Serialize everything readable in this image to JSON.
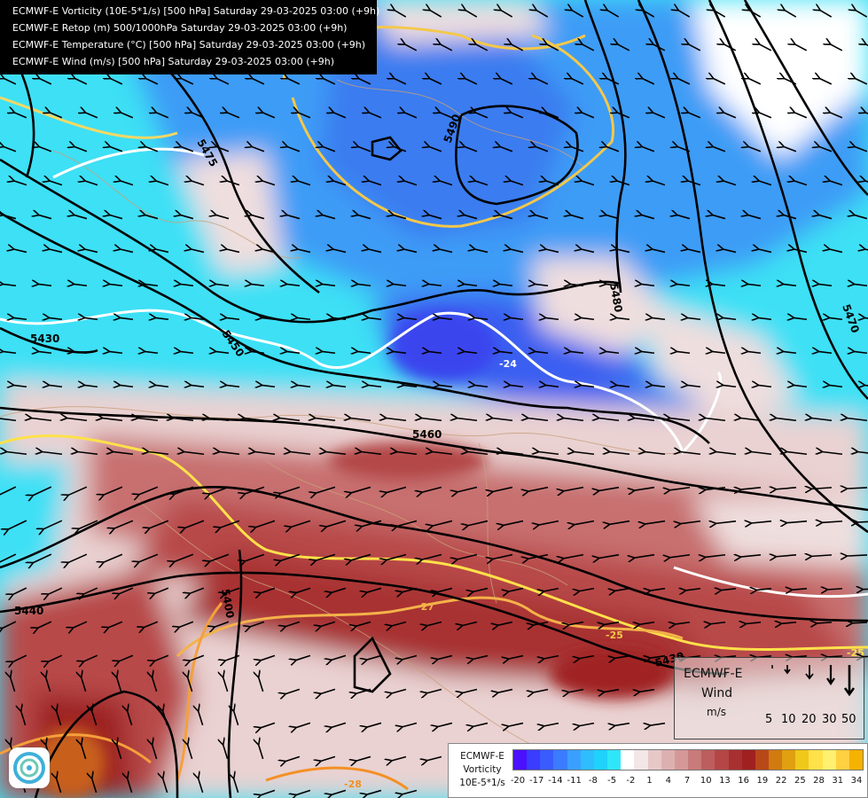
{
  "titles": [
    "ECMWF-E Vorticity (10E-5*1/s) [500 hPa] Saturday 29-03-2025 03:00 (+9h)",
    "ECMWF-E Retop (m) 500/1000hPa Saturday 29-03-2025 03:00 (+9h)",
    "ECMWF-E Temperature (°C) [500 hPa] Saturday 29-03-2025 03:00 (+9h)",
    "ECMWF-E Wind (m/s) [500 hPa] Saturday 29-03-2025 03:00 (+9h)"
  ],
  "contour_labels": [
    "5490",
    "5475",
    "5480",
    "5470",
    "5430",
    "5450",
    "5460",
    "5440",
    "5400",
    "5430"
  ],
  "isotherm_labels": [
    "-24",
    "-27",
    "-25",
    "-25",
    "-28"
  ],
  "wind_legend": {
    "line1": "ECMWF-E",
    "line2": "Wind",
    "line3": "m/s",
    "speeds": [
      "5",
      "10",
      "20",
      "30",
      "50"
    ]
  },
  "vorticity_legend": {
    "line1": "ECMWF-E",
    "line2": "Vorticity",
    "line3": "10E-5*1/s",
    "ticks": [
      "-20",
      "-17",
      "-14",
      "-11",
      "-8",
      "-5",
      "-2",
      "1",
      "4",
      "7",
      "10",
      "13",
      "16",
      "19",
      "22",
      "25",
      "28",
      "31",
      "34"
    ],
    "colors": [
      "#4b10ff",
      "#3a3cff",
      "#3a5cff",
      "#3b7bff",
      "#3aa0ff",
      "#2fbdfd",
      "#1fd2fb",
      "#2ee6f8",
      "#ffffff",
      "#f2e6e6",
      "#e6c8c8",
      "#ddb0b0",
      "#d59898",
      "#c97a7a",
      "#bd5e5e",
      "#b44646",
      "#a83030",
      "#a02020",
      "#b84818",
      "#d07a10",
      "#e0a010",
      "#f0c81a",
      "#ffe14a",
      "#fff070",
      "#ffd040",
      "#f6b200"
    ]
  },
  "colors": {
    "deep_blue": "#3a5ef0",
    "mid_blue": "#3e9cf6",
    "cyan": "#3ee0f5",
    "white": "#ffffff",
    "pink": "#ead2d2",
    "red": "#b84a4a",
    "dark_red": "#9d2424",
    "orange": "#c8601c"
  }
}
